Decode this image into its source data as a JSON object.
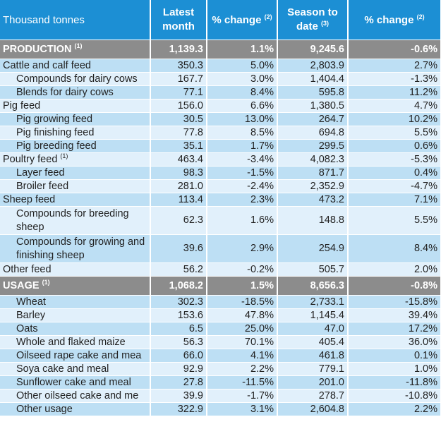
{
  "header": {
    "unit_label": "Thousand tonnes",
    "col_latest_line1": "Latest",
    "col_latest_line2": "month",
    "col_pct1": "% change",
    "col_pct1_note": "(2)",
    "col_season_line1": "Season to",
    "col_season_line2": "date",
    "col_season_note": "(3)",
    "col_pct2": "% change",
    "col_pct2_note": "(2)"
  },
  "rows": [
    {
      "label": "PRODUCTION",
      "note": "(1)",
      "latest": "1,139.3",
      "pct1": "1.1%",
      "season": "9,245.6",
      "pct2": "-0.6%"
    },
    {
      "label": "Cattle and calf feed",
      "note": "",
      "latest": "350.3",
      "pct1": "5.0%",
      "season": "2,803.9",
      "pct2": "2.7%"
    },
    {
      "label": "Compounds for dairy cows",
      "note": "",
      "latest": "167.7",
      "pct1": "3.0%",
      "season": "1,404.4",
      "pct2": "-1.3%"
    },
    {
      "label": "Blends for dairy cows",
      "note": "",
      "latest": "77.1",
      "pct1": "8.4%",
      "season": "595.8",
      "pct2": "11.2%"
    },
    {
      "label": "Pig feed",
      "note": "",
      "latest": "156.0",
      "pct1": "6.6%",
      "season": "1,380.5",
      "pct2": "4.7%"
    },
    {
      "label": "Pig growing feed",
      "note": "",
      "latest": "30.5",
      "pct1": "13.0%",
      "season": "264.7",
      "pct2": "10.2%"
    },
    {
      "label": "Pig finishing feed",
      "note": "",
      "latest": "77.8",
      "pct1": "8.5%",
      "season": "694.8",
      "pct2": "5.5%"
    },
    {
      "label": "Pig breeding feed",
      "note": "",
      "latest": "35.1",
      "pct1": "1.7%",
      "season": "299.5",
      "pct2": "0.6%"
    },
    {
      "label": "Poultry feed",
      "note": "(1)",
      "latest": "463.4",
      "pct1": "-3.4%",
      "season": "4,082.3",
      "pct2": "-5.3%"
    },
    {
      "label": "Layer feed",
      "note": "",
      "latest": "98.3",
      "pct1": "-1.5%",
      "season": "871.7",
      "pct2": "0.4%"
    },
    {
      "label": "Broiler feed",
      "note": "",
      "latest": "281.0",
      "pct1": "-2.4%",
      "season": "2,352.9",
      "pct2": "-4.7%"
    },
    {
      "label": "Sheep feed",
      "note": "",
      "latest": "113.4",
      "pct1": "2.3%",
      "season": "473.2",
      "pct2": "7.1%"
    },
    {
      "label": "Compounds for breeding sheep",
      "note": "",
      "latest": "62.3",
      "pct1": "1.6%",
      "season": "148.8",
      "pct2": "5.5%"
    },
    {
      "label": "Compounds for growing and finishing sheep",
      "note": "",
      "latest": "39.6",
      "pct1": "2.9%",
      "season": "254.9",
      "pct2": "8.4%"
    },
    {
      "label": "Other feed",
      "note": "",
      "latest": "56.2",
      "pct1": "-0.2%",
      "season": "505.7",
      "pct2": "2.0%"
    },
    {
      "label": "USAGE",
      "note": "(1)",
      "latest": "1,068.2",
      "pct1": "1.5%",
      "season": "8,656.3",
      "pct2": "-0.8%"
    },
    {
      "label": "Wheat",
      "note": "",
      "latest": "302.3",
      "pct1": "-18.5%",
      "season": "2,733.1",
      "pct2": "-15.8%"
    },
    {
      "label": "Barley",
      "note": "",
      "latest": "153.6",
      "pct1": "47.8%",
      "season": "1,145.4",
      "pct2": "39.4%"
    },
    {
      "label": "Oats",
      "note": "",
      "latest": "6.5",
      "pct1": "25.0%",
      "season": "47.0",
      "pct2": "17.2%"
    },
    {
      "label": "Whole and flaked maize",
      "note": "",
      "latest": "56.3",
      "pct1": "70.1%",
      "season": "405.4",
      "pct2": "36.0%"
    },
    {
      "label": "Oilseed rape cake and mea",
      "note": "",
      "latest": "66.0",
      "pct1": "4.1%",
      "season": "461.8",
      "pct2": "0.1%"
    },
    {
      "label": "Soya cake and meal",
      "note": "",
      "latest": "92.9",
      "pct1": "2.2%",
      "season": "779.1",
      "pct2": "1.0%"
    },
    {
      "label": "Sunflower cake and meal",
      "note": "",
      "latest": "27.8",
      "pct1": "-11.5%",
      "season": "201.0",
      "pct2": "-11.8%"
    },
    {
      "label": "Other oilseed cake and me",
      "note": "",
      "latest": "39.9",
      "pct1": "-1.7%",
      "season": "278.7",
      "pct2": "-10.8%"
    },
    {
      "label": "Other usage",
      "note": "",
      "latest": "322.9",
      "pct1": "3.1%",
      "season": "2,604.8",
      "pct2": "2.2%"
    }
  ],
  "colors": {
    "header_bg": "#1c8fd4",
    "section_bg": "#8c8c8c",
    "row_dark": "#bddff4",
    "row_light": "#e1f0fb"
  }
}
